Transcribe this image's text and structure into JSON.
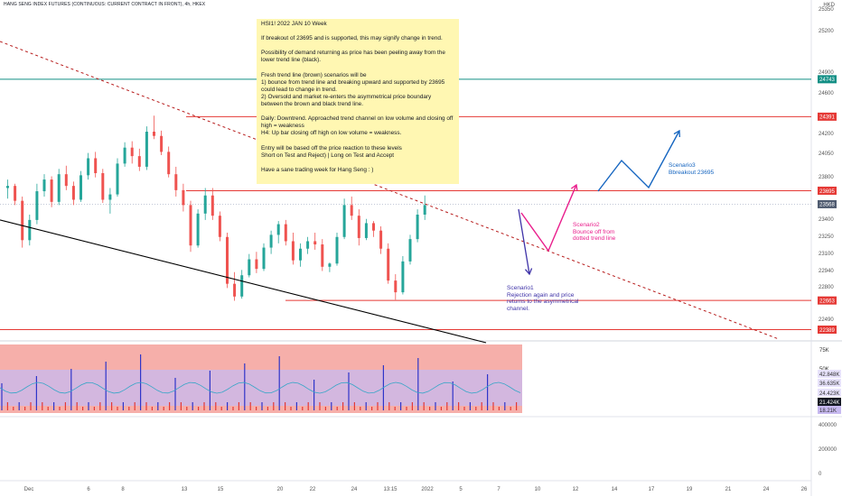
{
  "header": {
    "title": "HANG SENG INDEX FUTURES (CONTINUOUS: CURRENT CONTRACT IN FRONT), 4h, HKEX",
    "currency": "HKD"
  },
  "note": {
    "lines": [
      "HSI1!  2022 JAN 10 Week",
      "",
      "If breakout of 23695 and is supported, this may signify change in trend.",
      "",
      "Possibility of demand returning as price has been peeling away from the lower trend line (black).",
      "",
      "Fresh trend line (brown) scenarios will be",
      "1) bounce from trend line and breaking upward and supported by 23695 could lead to change in trend.",
      "2) Oversold and market re-enters the asymmetrical price boundary between the brown and black trend line.",
      "",
      "Daily: Downtrend. Approached trend channel on low volume and closing off high = weakness",
      "H4: Up bar closing off high on low volume = weakness.",
      "",
      "Entry will be based off the price reaction to these levels",
      "Short on Test and Reject)   |   Long on Test and Accept",
      "",
      "Have a sane trading week for Hang Seng : )"
    ]
  },
  "annotations": {
    "scenario1": "Scenario1\nRejection again and price\nreturns to the asymmetrical\nchannel.",
    "scenario2": "Scenario2\nBounce off from\ndotted trend line",
    "scenario3": "Scenario3\nBbreakout 23695"
  },
  "colors": {
    "up": "#26a69a",
    "down": "#ef5350",
    "level_red": "#e53935",
    "level_teal": "#138f85",
    "dotted_trend": "#b71c1c",
    "black_trend": "#000000",
    "scenario1": "#3f33a8",
    "scenario2": "#e91e8c",
    "scenario3": "#1565c0",
    "note_bg": "#fff7b2"
  },
  "chart_data": {
    "type": "candlestick",
    "price_axis": {
      "ticks": [
        "25350",
        "25200",
        "24900",
        "24743",
        "24600",
        "24391",
        "24200",
        "24050",
        "23800",
        "23695",
        "23568",
        "23400",
        "23250",
        "23100",
        "22940",
        "22800",
        "22663",
        "22490",
        "22389"
      ],
      "range": [
        22300,
        25420
      ]
    },
    "price_labels": [
      {
        "value": "24743",
        "price": 24743,
        "color": "#138f85"
      },
      {
        "value": "24391",
        "price": 24391,
        "color": "#e53935"
      },
      {
        "value": "23695",
        "price": 23695,
        "color": "#e53935"
      },
      {
        "value": "23568",
        "price": 23568,
        "color": "#4f5b70"
      },
      {
        "value": "22663",
        "price": 22663,
        "color": "#e53935"
      },
      {
        "value": "22389",
        "price": 22389,
        "color": "#e53935"
      }
    ],
    "levels": [
      {
        "price": 24743,
        "color": "#138f85"
      },
      {
        "price": 24391,
        "color": "#e53935"
      },
      {
        "price": 23695,
        "color": "#e53935"
      },
      {
        "price": 22663,
        "color": "#e53935"
      },
      {
        "price": 22389,
        "color": "#e53935"
      }
    ],
    "volume_axis": {
      "ticks": [
        "75K",
        "50K",
        "42.848K",
        "36.635K",
        "24.423K",
        "21.424K",
        "18.21K"
      ],
      "osc_ticks": [
        "400000",
        "200000",
        "0"
      ]
    },
    "x_ticks": [
      "Dec",
      "6",
      "8",
      "13",
      "15",
      "20",
      "22",
      "24",
      "13:15",
      "2022",
      "5",
      "7",
      "10",
      "12",
      "14",
      "17",
      "19",
      "21",
      "24",
      "26"
    ],
    "candles": [
      [
        23720,
        23800,
        23620,
        23740
      ],
      [
        23740,
        23760,
        23560,
        23600
      ],
      [
        23600,
        23640,
        23160,
        23230
      ],
      [
        23230,
        23470,
        23180,
        23420
      ],
      [
        23420,
        23760,
        23380,
        23690
      ],
      [
        23690,
        23850,
        23640,
        23800
      ],
      [
        23800,
        23830,
        23540,
        23590
      ],
      [
        23590,
        23900,
        23560,
        23850
      ],
      [
        23850,
        23930,
        23700,
        23740
      ],
      [
        23740,
        23780,
        23560,
        23610
      ],
      [
        23610,
        23880,
        23590,
        23840
      ],
      [
        23840,
        24050,
        23800,
        24000
      ],
      [
        24000,
        24060,
        23820,
        23860
      ],
      [
        23860,
        23900,
        23580,
        23610
      ],
      [
        23610,
        23720,
        23480,
        23660
      ],
      [
        23660,
        24000,
        23640,
        23950
      ],
      [
        23950,
        24150,
        23920,
        24100
      ],
      [
        24100,
        24160,
        23950,
        24020
      ],
      [
        24020,
        24090,
        23880,
        23920
      ],
      [
        23920,
        24300,
        23890,
        24250
      ],
      [
        24250,
        24400,
        24180,
        24210
      ],
      [
        24210,
        24260,
        24030,
        24060
      ],
      [
        24060,
        24110,
        23820,
        23850
      ],
      [
        23850,
        23920,
        23640,
        23700
      ],
      [
        23700,
        23760,
        23500,
        23560
      ],
      [
        23560,
        23600,
        23120,
        23180
      ],
      [
        23180,
        23520,
        23160,
        23480
      ],
      [
        23480,
        23720,
        23420,
        23650
      ],
      [
        23650,
        23720,
        23420,
        23460
      ],
      [
        23460,
        23500,
        23220,
        23260
      ],
      [
        23260,
        23300,
        22780,
        22820
      ],
      [
        22820,
        22930,
        22660,
        22700
      ],
      [
        22700,
        22950,
        22680,
        22900
      ],
      [
        22900,
        23100,
        22880,
        23050
      ],
      [
        23050,
        23120,
        22920,
        22960
      ],
      [
        22960,
        23200,
        22940,
        23160
      ],
      [
        23160,
        23320,
        23100,
        23280
      ],
      [
        23280,
        23410,
        23200,
        23380
      ],
      [
        23380,
        23420,
        23180,
        23220
      ],
      [
        23220,
        23300,
        23000,
        23040
      ],
      [
        23040,
        23200,
        22980,
        23150
      ],
      [
        23150,
        23260,
        23100,
        23220
      ],
      [
        23220,
        23300,
        23140,
        23190
      ],
      [
        23190,
        23240,
        22940,
        22980
      ],
      [
        22980,
        23020,
        22930,
        23010
      ],
      [
        23010,
        23300,
        22990,
        23260
      ],
      [
        23260,
        23620,
        23240,
        23560
      ],
      [
        23560,
        23640,
        23420,
        23460
      ],
      [
        23460,
        23520,
        23180,
        23250
      ],
      [
        23250,
        23430,
        23230,
        23390
      ],
      [
        23390,
        23410,
        23260,
        23320
      ],
      [
        23320,
        23360,
        23100,
        23150
      ],
      [
        23150,
        23200,
        22820,
        22850
      ],
      [
        22850,
        22910,
        22670,
        22740
      ],
      [
        22740,
        23080,
        22720,
        23030
      ],
      [
        23030,
        23280,
        23000,
        23240
      ],
      [
        23240,
        23520,
        23210,
        23470
      ],
      [
        23470,
        23650,
        23420,
        23560
      ]
    ]
  }
}
